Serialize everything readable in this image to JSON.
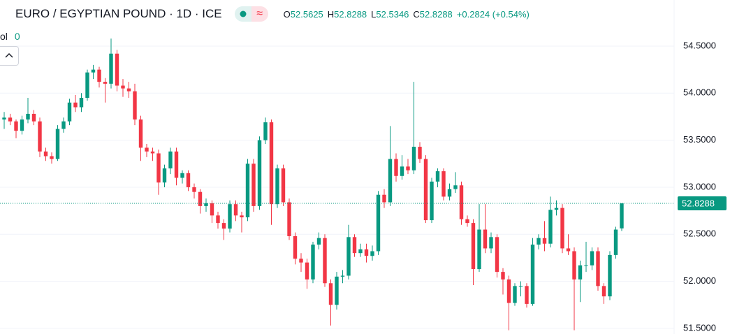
{
  "header": {
    "symbol": "EURO / EGYPTIAN POUND · 1D · ICE",
    "o_key": "O",
    "open": "52.5625",
    "h_key": "H",
    "high": "52.8288",
    "l_key": "L",
    "low": "52.5346",
    "c_key": "C",
    "close": "52.8288",
    "change": "+0.2824 (+0.54%)",
    "vol_key": "ol",
    "vol_value": "0"
  },
  "chart_data": {
    "type": "candlestick",
    "up_color": "#089981",
    "down_color": "#f23645",
    "grid": true,
    "ylim": [
      51.44,
      54.99
    ],
    "yticks": [
      {
        "value": 51.5,
        "label": "51.5000"
      },
      {
        "value": 52,
        "label": "52.0000"
      },
      {
        "value": 52.5,
        "label": "52.5000"
      },
      {
        "value": 53,
        "label": "53.0000"
      },
      {
        "value": 53.5,
        "label": "53.5000"
      },
      {
        "value": 54,
        "label": "54.0000"
      },
      {
        "value": 54.5,
        "label": "54.5000"
      }
    ],
    "current_price": {
      "value": 52.8288,
      "label": "52.8288"
    },
    "ohlc": [
      [
        53.72,
        53.8,
        53.62,
        53.74
      ],
      [
        53.74,
        53.78,
        53.66,
        53.7
      ],
      [
        53.7,
        53.72,
        53.52,
        53.6
      ],
      [
        53.6,
        53.76,
        53.56,
        53.72
      ],
      [
        53.72,
        53.95,
        53.68,
        53.78
      ],
      [
        53.78,
        53.82,
        53.66,
        53.7
      ],
      [
        53.7,
        53.74,
        53.32,
        53.38
      ],
      [
        53.38,
        53.42,
        53.28,
        53.33
      ],
      [
        53.33,
        53.37,
        53.25,
        53.3
      ],
      [
        53.3,
        53.66,
        53.28,
        53.62
      ],
      [
        53.62,
        53.74,
        53.58,
        53.7
      ],
      [
        53.7,
        53.94,
        53.66,
        53.9
      ],
      [
        53.9,
        53.98,
        53.8,
        53.85
      ],
      [
        53.85,
        54.0,
        53.8,
        53.95
      ],
      [
        53.95,
        54.25,
        53.92,
        54.22
      ],
      [
        54.22,
        54.3,
        54.15,
        54.25
      ],
      [
        54.25,
        54.28,
        54.06,
        54.12
      ],
      [
        54.12,
        54.16,
        53.9,
        54.1
      ],
      [
        54.1,
        54.58,
        54.05,
        54.42
      ],
      [
        54.42,
        54.46,
        54.02,
        54.08
      ],
      [
        54.08,
        54.15,
        53.96,
        54.05
      ],
      [
        54.05,
        54.12,
        53.95,
        54.02
      ],
      [
        54.02,
        54.1,
        53.66,
        53.72
      ],
      [
        53.72,
        53.76,
        53.28,
        53.42
      ],
      [
        53.42,
        53.46,
        53.32,
        53.38
      ],
      [
        53.38,
        53.42,
        53.28,
        53.36
      ],
      [
        53.36,
        53.4,
        52.92,
        53.05
      ],
      [
        53.05,
        53.24,
        53.0,
        53.2
      ],
      [
        53.2,
        53.42,
        53.14,
        53.38
      ],
      [
        53.38,
        53.42,
        53.02,
        53.1
      ],
      [
        53.1,
        53.18,
        53.04,
        53.15
      ],
      [
        53.15,
        53.18,
        52.96,
        53.0
      ],
      [
        53.0,
        53.04,
        52.88,
        52.95
      ],
      [
        52.95,
        52.98,
        52.72,
        52.8
      ],
      [
        52.8,
        52.88,
        52.74,
        52.83
      ],
      [
        52.83,
        52.86,
        52.62,
        52.7
      ],
      [
        52.7,
        52.74,
        52.56,
        52.62
      ],
      [
        52.62,
        52.66,
        52.44,
        52.56
      ],
      [
        52.56,
        52.86,
        52.52,
        52.82
      ],
      [
        52.82,
        52.86,
        52.64,
        52.7
      ],
      [
        52.7,
        52.74,
        52.52,
        52.68
      ],
      [
        52.68,
        53.3,
        52.64,
        53.25
      ],
      [
        53.25,
        53.3,
        52.74,
        52.8
      ],
      [
        52.8,
        53.54,
        52.76,
        53.5
      ],
      [
        53.5,
        53.74,
        53.46,
        53.69
      ],
      [
        53.69,
        53.72,
        52.6,
        52.82
      ],
      [
        52.82,
        53.24,
        52.78,
        53.2
      ],
      [
        53.2,
        53.24,
        52.8,
        52.84
      ],
      [
        52.84,
        52.88,
        52.44,
        52.48
      ],
      [
        52.48,
        52.52,
        52.18,
        52.24
      ],
      [
        52.24,
        52.3,
        52.1,
        52.2
      ],
      [
        52.2,
        52.24,
        51.92,
        52.02
      ],
      [
        52.02,
        52.42,
        51.98,
        52.39
      ],
      [
        52.39,
        52.52,
        52.34,
        52.46
      ],
      [
        52.46,
        52.5,
        51.94,
        51.98
      ],
      [
        51.98,
        52.02,
        51.53,
        51.75
      ],
      [
        51.75,
        52.1,
        51.7,
        52.05
      ],
      [
        52.05,
        52.12,
        51.98,
        52.06
      ],
      [
        52.06,
        52.6,
        52.02,
        52.47
      ],
      [
        52.47,
        52.5,
        52.26,
        52.3
      ],
      [
        52.3,
        52.4,
        52.26,
        52.34
      ],
      [
        52.34,
        52.4,
        52.2,
        52.27
      ],
      [
        52.27,
        52.38,
        52.22,
        52.32
      ],
      [
        52.32,
        52.96,
        52.28,
        52.92
      ],
      [
        52.92,
        52.98,
        52.78,
        52.84
      ],
      [
        52.84,
        53.65,
        52.8,
        53.3
      ],
      [
        53.3,
        53.36,
        53.06,
        53.12
      ],
      [
        53.12,
        53.34,
        53.08,
        53.22
      ],
      [
        53.22,
        53.3,
        53.14,
        53.18
      ],
      [
        53.18,
        54.12,
        53.14,
        53.43
      ],
      [
        53.43,
        53.48,
        53.26,
        53.3
      ],
      [
        53.3,
        53.34,
        52.62,
        52.65
      ],
      [
        52.65,
        53.1,
        52.62,
        53.06
      ],
      [
        53.06,
        53.2,
        53.0,
        53.17
      ],
      [
        53.17,
        53.2,
        52.86,
        52.9
      ],
      [
        52.9,
        53.04,
        52.86,
        52.98
      ],
      [
        52.98,
        53.16,
        52.94,
        53.02
      ],
      [
        53.02,
        53.06,
        52.6,
        52.66
      ],
      [
        52.66,
        52.7,
        52.58,
        52.62
      ],
      [
        52.62,
        52.66,
        51.96,
        52.13
      ],
      [
        52.13,
        52.82,
        52.1,
        52.55
      ],
      [
        52.55,
        52.82,
        52.3,
        52.35
      ],
      [
        52.35,
        52.52,
        52.3,
        52.47
      ],
      [
        52.47,
        52.5,
        52.04,
        52.1
      ],
      [
        52.1,
        52.14,
        51.86,
        52.02
      ],
      [
        52.02,
        52.06,
        51.48,
        51.77
      ],
      [
        51.77,
        51.98,
        51.74,
        51.95
      ],
      [
        51.95,
        52.0,
        51.84,
        51.95
      ],
      [
        51.95,
        51.98,
        51.72,
        51.76
      ],
      [
        51.76,
        52.46,
        51.74,
        52.39
      ],
      [
        52.39,
        52.5,
        52.34,
        52.46
      ],
      [
        52.46,
        52.64,
        52.32,
        52.4
      ],
      [
        52.4,
        52.9,
        52.36,
        52.76
      ],
      [
        52.76,
        52.86,
        52.7,
        52.78
      ],
      [
        52.78,
        52.82,
        52.3,
        52.35
      ],
      [
        52.35,
        52.5,
        52.28,
        52.32
      ],
      [
        52.32,
        52.36,
        51.48,
        52.02
      ],
      [
        52.02,
        52.22,
        51.78,
        52.17
      ],
      [
        52.17,
        52.42,
        52.1,
        52.17
      ],
      [
        52.17,
        52.36,
        52.12,
        52.32
      ],
      [
        52.32,
        52.36,
        51.9,
        51.95
      ],
      [
        51.95,
        51.98,
        51.76,
        51.84
      ],
      [
        51.84,
        52.32,
        51.8,
        52.28
      ],
      [
        52.28,
        52.58,
        52.24,
        52.55
      ],
      [
        52.5625,
        52.8288,
        52.5346,
        52.8288
      ]
    ]
  }
}
